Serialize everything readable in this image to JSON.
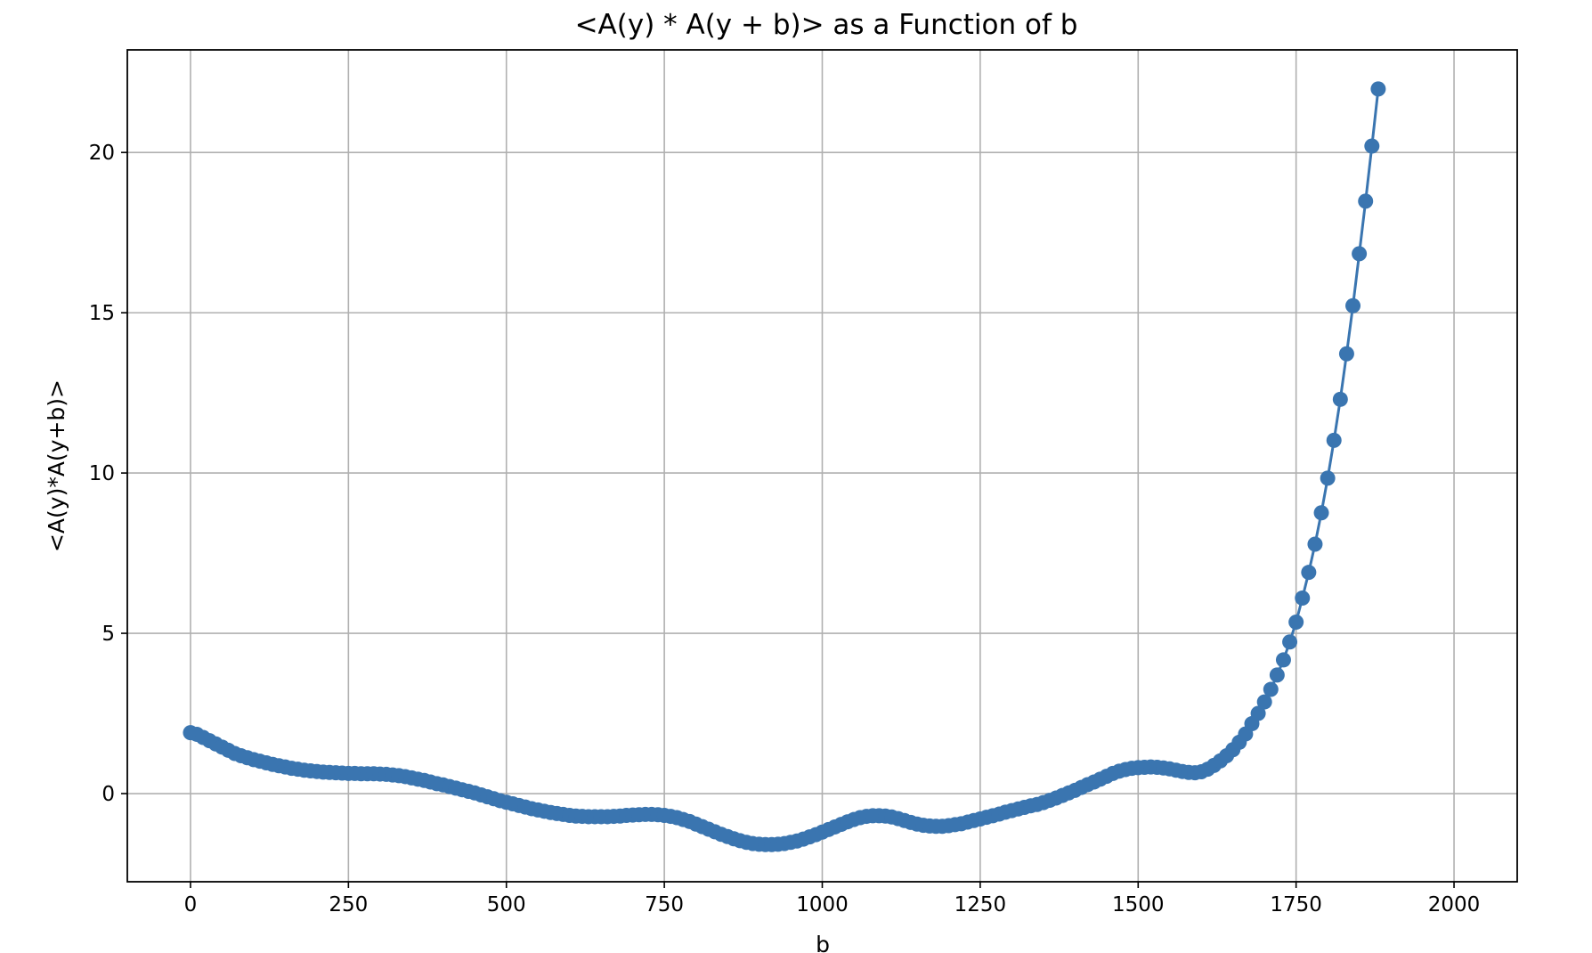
{
  "chart_data": {
    "type": "line",
    "title": "<A(y) * A(y + b)> as a Function of b",
    "xlabel": "b",
    "ylabel": "<A(y)*A(y+b)>",
    "xlim": [
      -100,
      2100
    ],
    "ylim": [
      -2.75,
      23.2
    ],
    "xticks": [
      0,
      250,
      500,
      750,
      1000,
      1250,
      1500,
      1750,
      2000
    ],
    "yticks": [
      0,
      5,
      10,
      15,
      20
    ],
    "grid": true,
    "legend": "none",
    "series": [
      {
        "color": "#3a75b0",
        "marker": "circle",
        "x_start": 0,
        "x_step": 10,
        "values": [
          1.9,
          1.85,
          1.75,
          1.65,
          1.55,
          1.45,
          1.35,
          1.25,
          1.18,
          1.12,
          1.06,
          1.01,
          0.96,
          0.91,
          0.87,
          0.83,
          0.79,
          0.76,
          0.73,
          0.71,
          0.69,
          0.67,
          0.66,
          0.65,
          0.64,
          0.63,
          0.63,
          0.62,
          0.62,
          0.62,
          0.61,
          0.6,
          0.58,
          0.56,
          0.53,
          0.49,
          0.45,
          0.41,
          0.36,
          0.31,
          0.27,
          0.22,
          0.17,
          0.12,
          0.07,
          0.02,
          -0.04,
          -0.1,
          -0.16,
          -0.22,
          -0.27,
          -0.32,
          -0.37,
          -0.42,
          -0.47,
          -0.51,
          -0.55,
          -0.59,
          -0.62,
          -0.65,
          -0.68,
          -0.7,
          -0.71,
          -0.72,
          -0.72,
          -0.72,
          -0.72,
          -0.71,
          -0.7,
          -0.68,
          -0.67,
          -0.66,
          -0.65,
          -0.65,
          -0.66,
          -0.68,
          -0.71,
          -0.75,
          -0.81,
          -0.87,
          -0.95,
          -1.03,
          -1.11,
          -1.19,
          -1.27,
          -1.34,
          -1.41,
          -1.47,
          -1.52,
          -1.56,
          -1.58,
          -1.59,
          -1.59,
          -1.58,
          -1.56,
          -1.52,
          -1.48,
          -1.42,
          -1.35,
          -1.28,
          -1.2,
          -1.12,
          -1.04,
          -0.96,
          -0.88,
          -0.81,
          -0.75,
          -0.71,
          -0.69,
          -0.69,
          -0.7,
          -0.73,
          -0.78,
          -0.84,
          -0.9,
          -0.95,
          -0.99,
          -1.01,
          -1.02,
          -1.02,
          -1.0,
          -0.97,
          -0.94,
          -0.89,
          -0.84,
          -0.79,
          -0.74,
          -0.69,
          -0.64,
          -0.58,
          -0.53,
          -0.48,
          -0.43,
          -0.38,
          -0.34,
          -0.28,
          -0.21,
          -0.14,
          -0.06,
          0.02,
          0.1,
          0.19,
          0.28,
          0.36,
          0.45,
          0.54,
          0.63,
          0.7,
          0.75,
          0.79,
          0.81,
          0.82,
          0.83,
          0.82,
          0.8,
          0.77,
          0.73,
          0.69,
          0.66,
          0.65,
          0.68,
          0.76,
          0.88,
          1.02,
          1.18,
          1.37,
          1.6,
          1.86,
          2.18,
          2.5,
          2.86,
          3.25,
          3.7,
          4.17,
          4.73,
          5.35,
          6.1,
          6.9,
          7.78,
          8.76,
          9.84,
          11.02,
          12.3,
          13.72,
          15.22,
          16.84,
          18.48,
          20.2,
          21.98
        ]
      }
    ]
  }
}
